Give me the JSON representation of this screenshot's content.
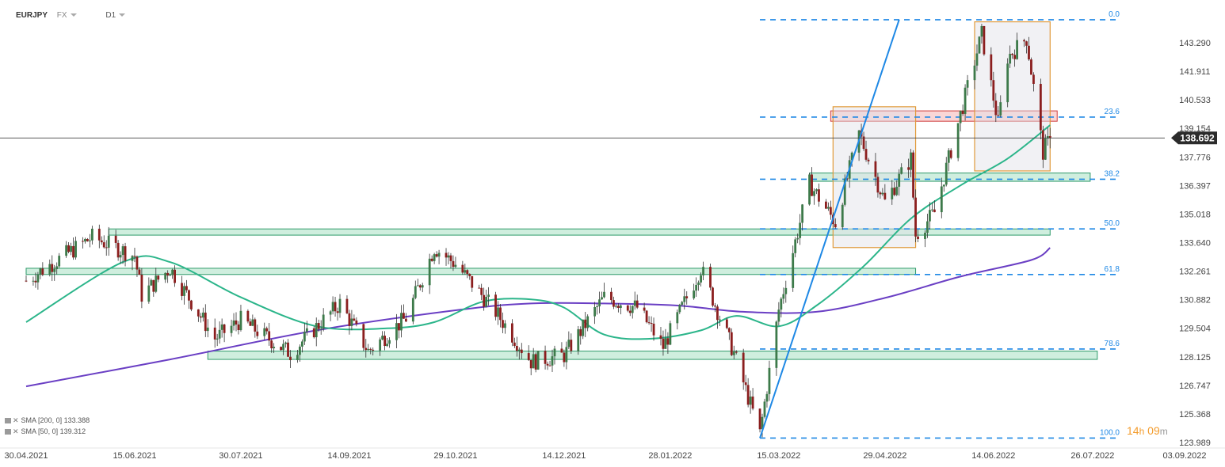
{
  "header": {
    "symbol": "EURJPY",
    "market": "FX",
    "interval": "D1"
  },
  "indicators": [
    {
      "label": "SMA [200, 0] 133.388"
    },
    {
      "label": "SMA [50, 0] 139.312"
    }
  ],
  "countdown": {
    "hours": "14",
    "hours_unit": "h",
    "minutes": "09",
    "minutes_unit": "m"
  },
  "colors": {
    "bull_candle": "#3d7a4a",
    "bear_candle": "#8b1e1e",
    "sma50": "#2bb58a",
    "sma200": "#6a3fc4",
    "fib_line": "#1e88e5",
    "trend_line": "#1e88e5",
    "support_zone": "#bfe8d3",
    "resistance_zone": "#f7c8c8",
    "price_marker": "#2b2b2b",
    "highlight_box": "#e09a3a"
  },
  "chart_data": {
    "type": "candlestick",
    "symbol": "EURJPY",
    "timeframe": "D1",
    "ylim": [
      123.2,
      145.0
    ],
    "y_ticks": [
      "143.290",
      "141.911",
      "140.533",
      "139.154",
      "137.776",
      "136.397",
      "135.018",
      "133.640",
      "132.261",
      "130.882",
      "129.504",
      "128.125",
      "126.747",
      "125.368",
      "123.989"
    ],
    "x_ticks": [
      "30.04.2021",
      "15.06.2021",
      "30.07.2021",
      "14.09.2021",
      "29.10.2021",
      "14.12.2021",
      "28.01.2022",
      "15.03.2022",
      "29.04.2022",
      "14.06.2022",
      "26.07.2022",
      "03.09.2022"
    ],
    "last_price": "138.692",
    "last_price_value": 138.692,
    "key_points": [
      {
        "date": "30.04.2021",
        "price": 131.8
      },
      {
        "date": "28.05.2021",
        "price": 133.9
      },
      {
        "date": "15.06.2021",
        "price": 133.0
      },
      {
        "date": "18.06.2021",
        "price": 131.1
      },
      {
        "date": "30.06.2021",
        "price": 132.4
      },
      {
        "date": "19.07.2021",
        "price": 129.0
      },
      {
        "date": "30.07.2021",
        "price": 129.9
      },
      {
        "date": "20.08.2021",
        "price": 128.3
      },
      {
        "date": "10.09.2021",
        "price": 130.7
      },
      {
        "date": "22.09.2021",
        "price": 128.4
      },
      {
        "date": "08.10.2021",
        "price": 130.0
      },
      {
        "date": "20.10.2021",
        "price": 133.4
      },
      {
        "date": "29.10.2021",
        "price": 132.6
      },
      {
        "date": "15.11.2021",
        "price": 130.3
      },
      {
        "date": "30.11.2021",
        "price": 127.9
      },
      {
        "date": "14.12.2021",
        "price": 128.2
      },
      {
        "date": "31.12.2021",
        "price": 131.0
      },
      {
        "date": "14.01.2022",
        "price": 130.5
      },
      {
        "date": "25.01.2022",
        "price": 128.6
      },
      {
        "date": "10.02.2022",
        "price": 132.4
      },
      {
        "date": "24.02.2022",
        "price": 128.3
      },
      {
        "date": "07.03.2022",
        "price": 124.4
      },
      {
        "date": "15.03.2022",
        "price": 130.4
      },
      {
        "date": "28.03.2022",
        "price": 136.5
      },
      {
        "date": "08.04.2022",
        "price": 134.6
      },
      {
        "date": "18.04.2022",
        "price": 138.9
      },
      {
        "date": "29.04.2022",
        "price": 135.6
      },
      {
        "date": "10.05.2022",
        "price": 137.7
      },
      {
        "date": "12.05.2022",
        "price": 134.0
      },
      {
        "date": "20.05.2022",
        "price": 135.1
      },
      {
        "date": "09.06.2022",
        "price": 143.7
      },
      {
        "date": "16.06.2022",
        "price": 139.4
      },
      {
        "date": "20.06.2022",
        "price": 142.6
      },
      {
        "date": "28.06.2022",
        "price": 143.5
      },
      {
        "date": "05.07.2022",
        "price": 138.0
      },
      {
        "date": "08.07.2022",
        "price": 138.692
      }
    ],
    "sma50_points": [
      {
        "date": "30.04.2021",
        "price": 129.8
      },
      {
        "date": "10.06.2021",
        "price": 132.7
      },
      {
        "date": "30.06.2021",
        "price": 132.7
      },
      {
        "date": "30.07.2021",
        "price": 131.0
      },
      {
        "date": "31.08.2021",
        "price": 129.6
      },
      {
        "date": "30.09.2021",
        "price": 129.5
      },
      {
        "date": "20.10.2021",
        "price": 129.8
      },
      {
        "date": "10.11.2021",
        "price": 130.8
      },
      {
        "date": "30.11.2021",
        "price": 130.9
      },
      {
        "date": "14.12.2021",
        "price": 130.5
      },
      {
        "date": "31.12.2021",
        "price": 129.2
      },
      {
        "date": "20.01.2022",
        "price": 129.0
      },
      {
        "date": "10.02.2022",
        "price": 129.4
      },
      {
        "date": "25.02.2022",
        "price": 130.1
      },
      {
        "date": "15.03.2022",
        "price": 129.6
      },
      {
        "date": "31.03.2022",
        "price": 130.6
      },
      {
        "date": "20.04.2022",
        "price": 132.5
      },
      {
        "date": "10.05.2022",
        "price": 134.8
      },
      {
        "date": "31.05.2022",
        "price": 136.4
      },
      {
        "date": "20.06.2022",
        "price": 137.7
      },
      {
        "date": "08.07.2022",
        "price": 139.312
      }
    ],
    "sma200_points": [
      {
        "date": "30.04.2021",
        "price": 126.7
      },
      {
        "date": "30.06.2021",
        "price": 128.0
      },
      {
        "date": "31.08.2021",
        "price": 129.4
      },
      {
        "date": "31.10.2021",
        "price": 130.4
      },
      {
        "date": "30.11.2021",
        "price": 130.7
      },
      {
        "date": "31.12.2021",
        "price": 130.7
      },
      {
        "date": "31.01.2022",
        "price": 130.6
      },
      {
        "date": "28.02.2022",
        "price": 130.3
      },
      {
        "date": "31.03.2022",
        "price": 130.3
      },
      {
        "date": "30.04.2022",
        "price": 131.0
      },
      {
        "date": "31.05.2022",
        "price": 132.0
      },
      {
        "date": "30.06.2022",
        "price": 132.8
      },
      {
        "date": "08.07.2022",
        "price": 133.388
      }
    ],
    "fibonacci": {
      "levels": [
        {
          "label": "0.0",
          "price": 144.4
        },
        {
          "label": "23.6",
          "price": 139.7
        },
        {
          "label": "38.2",
          "price": 136.7
        },
        {
          "label": "50.0",
          "price": 134.3
        },
        {
          "label": "61.8",
          "price": 132.1
        },
        {
          "label": "78.6",
          "price": 128.5
        },
        {
          "label": "100.0",
          "price": 124.2
        }
      ],
      "start_date": "07.03.2022"
    },
    "trend_line": {
      "from": {
        "date": "07.03.2022",
        "price": 124.2
      },
      "to": {
        "date": "05.05.2022",
        "price": 144.4
      }
    },
    "zones": [
      {
        "kind": "support",
        "from_date": "04.06.2021",
        "to_date": "08.07.2022",
        "low": 134.0,
        "high": 134.3
      },
      {
        "kind": "support",
        "from_date": "30.04.2021",
        "to_date": "12.05.2022",
        "low": 132.1,
        "high": 132.4
      },
      {
        "kind": "support",
        "from_date": "16.07.2021",
        "to_date": "28.07.2022",
        "low": 128.0,
        "high": 128.4
      },
      {
        "kind": "support",
        "from_date": "28.03.2022",
        "to_date": "25.07.2022",
        "low": 136.6,
        "high": 137.0
      },
      {
        "kind": "resistance",
        "from_date": "06.04.2022",
        "to_date": "11.07.2022",
        "low": 139.5,
        "high": 140.0
      }
    ],
    "boxes": [
      {
        "from_date": "07.04.2022",
        "to_date": "12.05.2022",
        "low": 133.4,
        "high": 140.2
      },
      {
        "from_date": "06.06.2022",
        "to_date": "08.07.2022",
        "low": 137.1,
        "high": 144.3
      }
    ]
  }
}
